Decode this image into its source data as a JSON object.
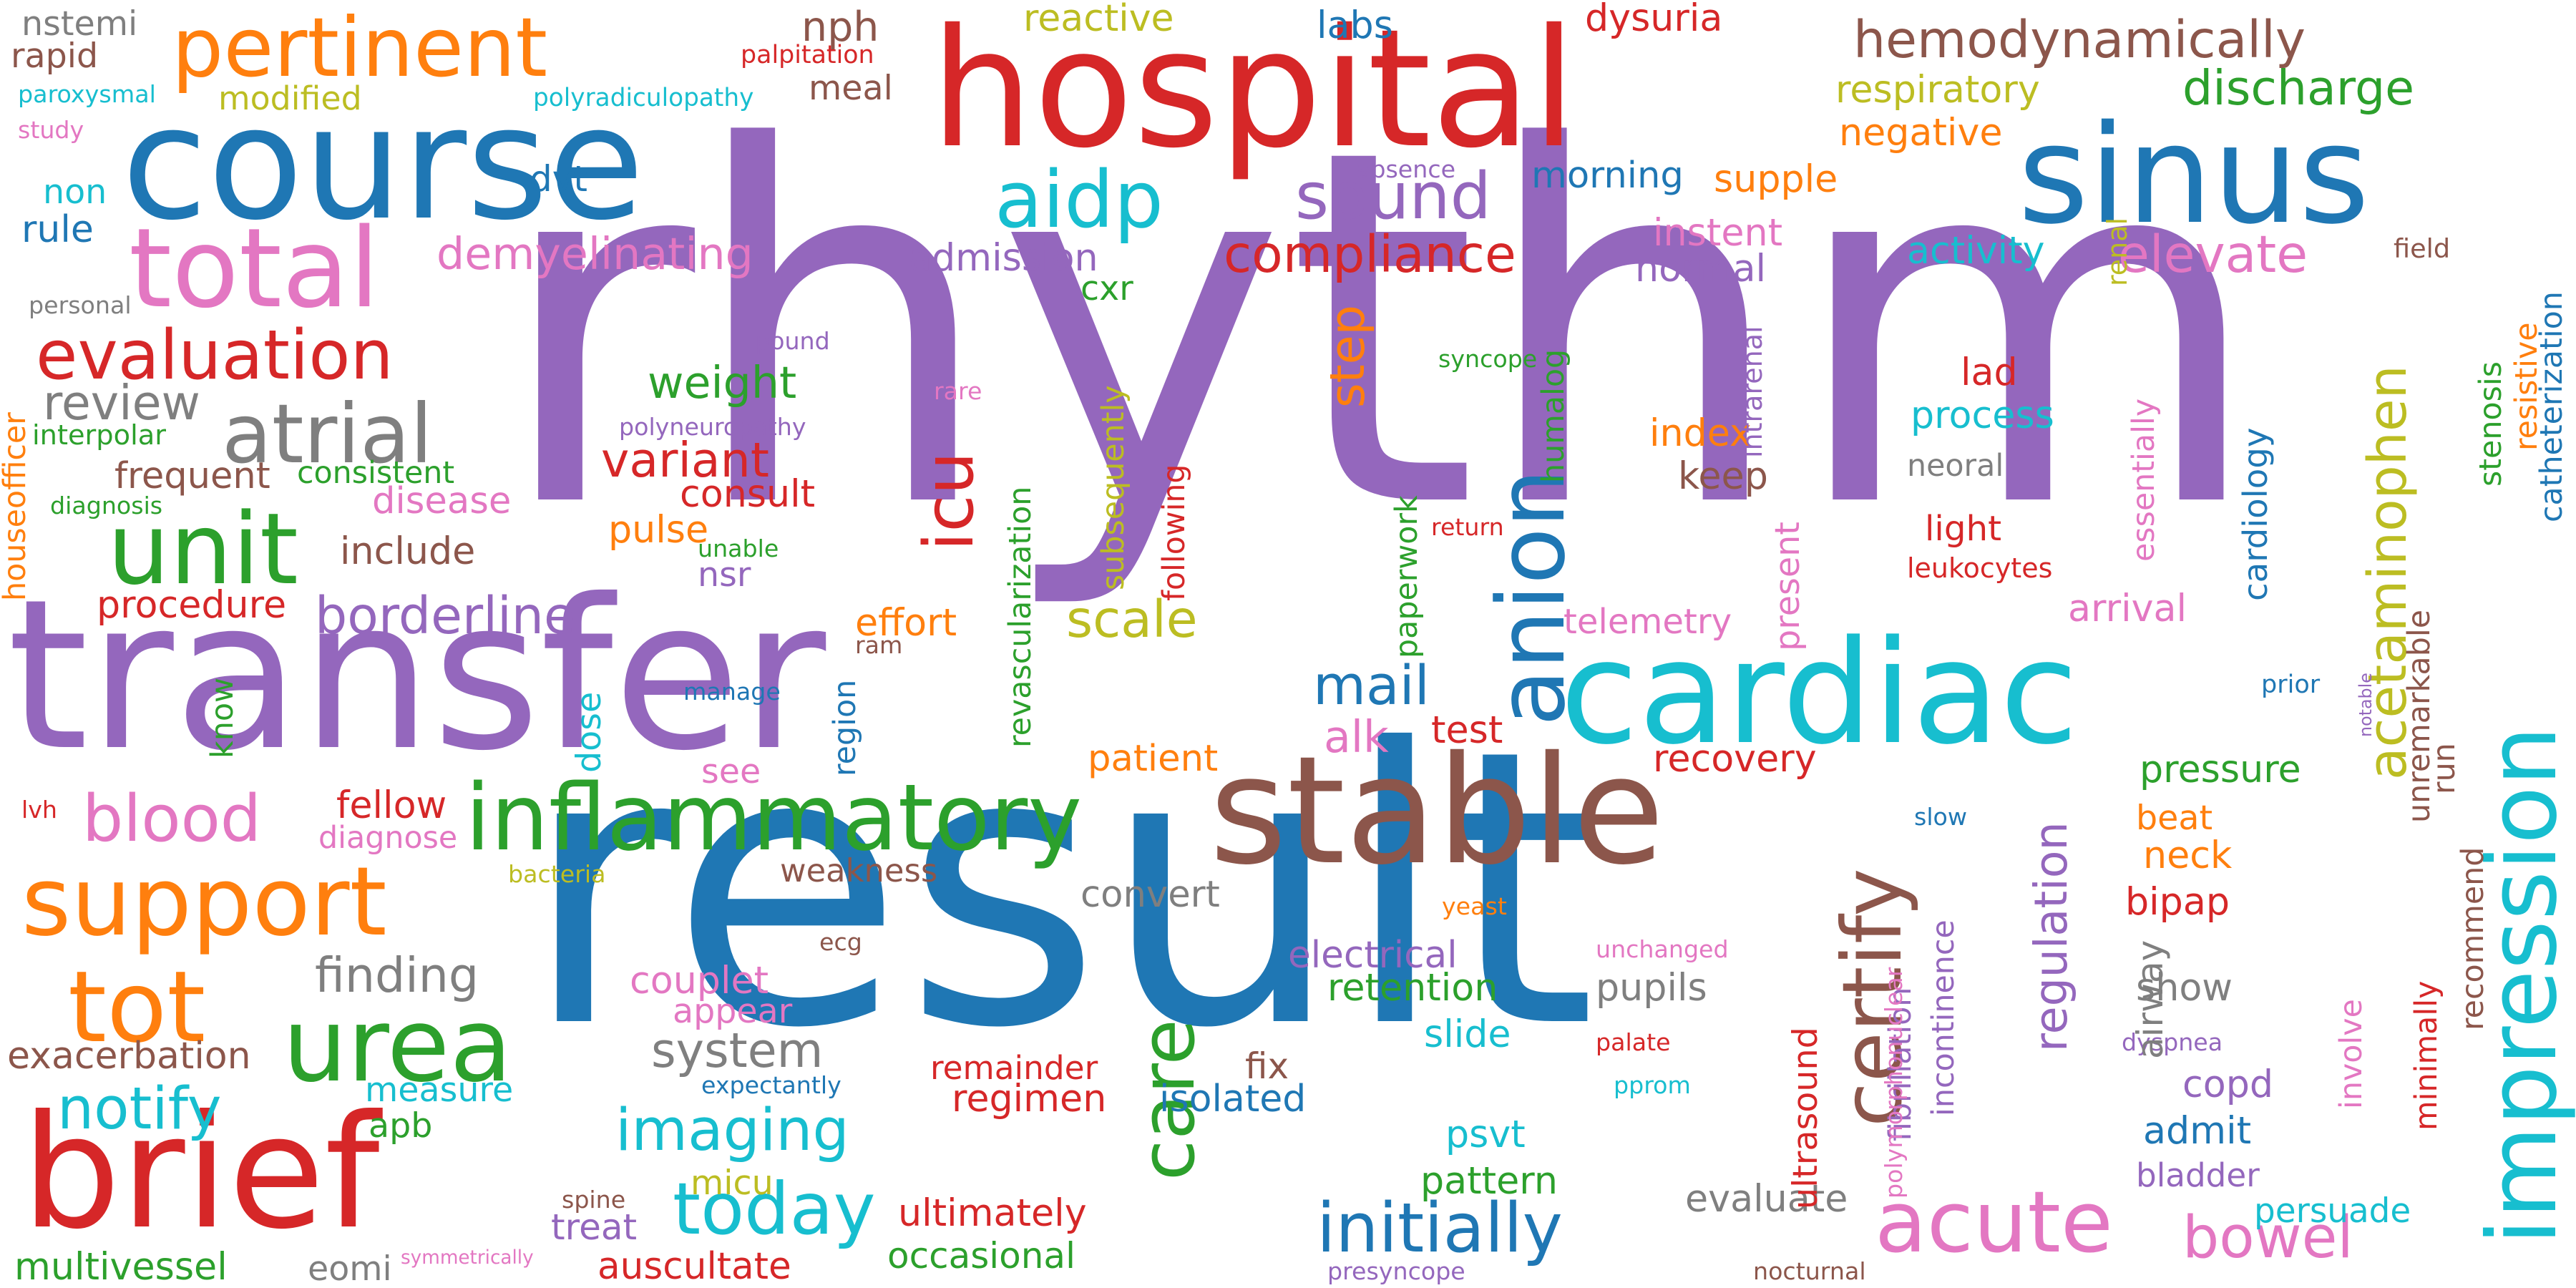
{
  "colors": {
    "red": "#d62728",
    "purple": "#9467bd",
    "blue": "#1f77b4",
    "cyan": "#17becf",
    "green": "#2ca02c",
    "orange": "#ff7f0e",
    "brown": "#8c564b",
    "pink": "#e377c2",
    "gray": "#7f7f7f",
    "olive": "#bcbd22"
  },
  "words": [
    "rhythm",
    "result",
    "transfer",
    "hospital",
    "course",
    "sinus",
    "cardiac",
    "brief",
    "stable",
    "impression",
    "pertinent",
    "hemodynamically",
    "total",
    "evaluation",
    "unit",
    "support",
    "urea",
    "inflammatory",
    "anion",
    "acute",
    "tot",
    "atrial",
    "initially",
    "care",
    "blood",
    "aidp",
    "discharge",
    "sound",
    "present",
    "today",
    "imaging",
    "certify",
    "acetaminophen",
    "regulation",
    "bowel",
    "notify",
    "compliance",
    "demyelinating",
    "elevate",
    "borderline",
    "icu",
    "weight",
    "variant",
    "review",
    "mail",
    "scale",
    "step",
    "finding",
    "cardiology",
    "pressure",
    "system",
    "reactive",
    "labs",
    "dysuria",
    "nph",
    "meal",
    "nstemi",
    "rapid",
    "paroxysmal",
    "modified",
    "polyradiculopathy",
    "palpitation",
    "respiratory",
    "negative",
    "non",
    "rule",
    "dvt",
    "morning",
    "supple",
    "absence",
    "admission",
    "instent",
    "normal",
    "activity",
    "field",
    "personal",
    "pound",
    "rare",
    "syncope",
    "interpolar",
    "polyneuropathy",
    "index",
    "process",
    "diagnosis",
    "frequent",
    "consistent",
    "disease",
    "include",
    "consult",
    "pulse",
    "unable",
    "nsr",
    "procedure",
    "effort",
    "ram",
    "know",
    "dose",
    "manage",
    "region",
    "test",
    "alk",
    "patient",
    "see",
    "recovery",
    "telemetry",
    "arrival",
    "fellow",
    "diagnose",
    "bacteria",
    "weakness",
    "convert",
    "couplet",
    "appear",
    "exacerbation",
    "measure",
    "apb",
    "remainder",
    "regimen",
    "fix",
    "isolated",
    "electrical",
    "retention",
    "slide",
    "pupils",
    "show",
    "copd",
    "admit",
    "bladder",
    "persuade",
    "presyncope",
    "nocturnal",
    "multivessel",
    "eomi",
    "symmetrically",
    "auscultate",
    "occasional",
    "ultimately",
    "treat",
    "micu",
    "spine",
    "expectantly",
    "pattern",
    "psvt",
    "evaluate",
    "pprom",
    "palate",
    "dyspnea",
    "airway",
    "involve",
    "minimally",
    "recommend",
    "unchanged",
    "yeast",
    "bipap",
    "ecg",
    "lvh",
    "slow",
    "beat",
    "neck",
    "prior",
    "notable",
    "run",
    "unremarkable",
    "stenosis",
    "resistive",
    "catheterization",
    "renal",
    "intrarenal",
    "essentially",
    "lad",
    "neoral",
    "light",
    "leukocytes",
    "keep",
    "humalog",
    "paperwork",
    "return",
    "following",
    "subsequently",
    "revascularization",
    "houseofficer",
    "cxr",
    "study",
    "ultrasound",
    "fibrillation",
    "incontinence",
    "polymorphonuclear"
  ]
}
